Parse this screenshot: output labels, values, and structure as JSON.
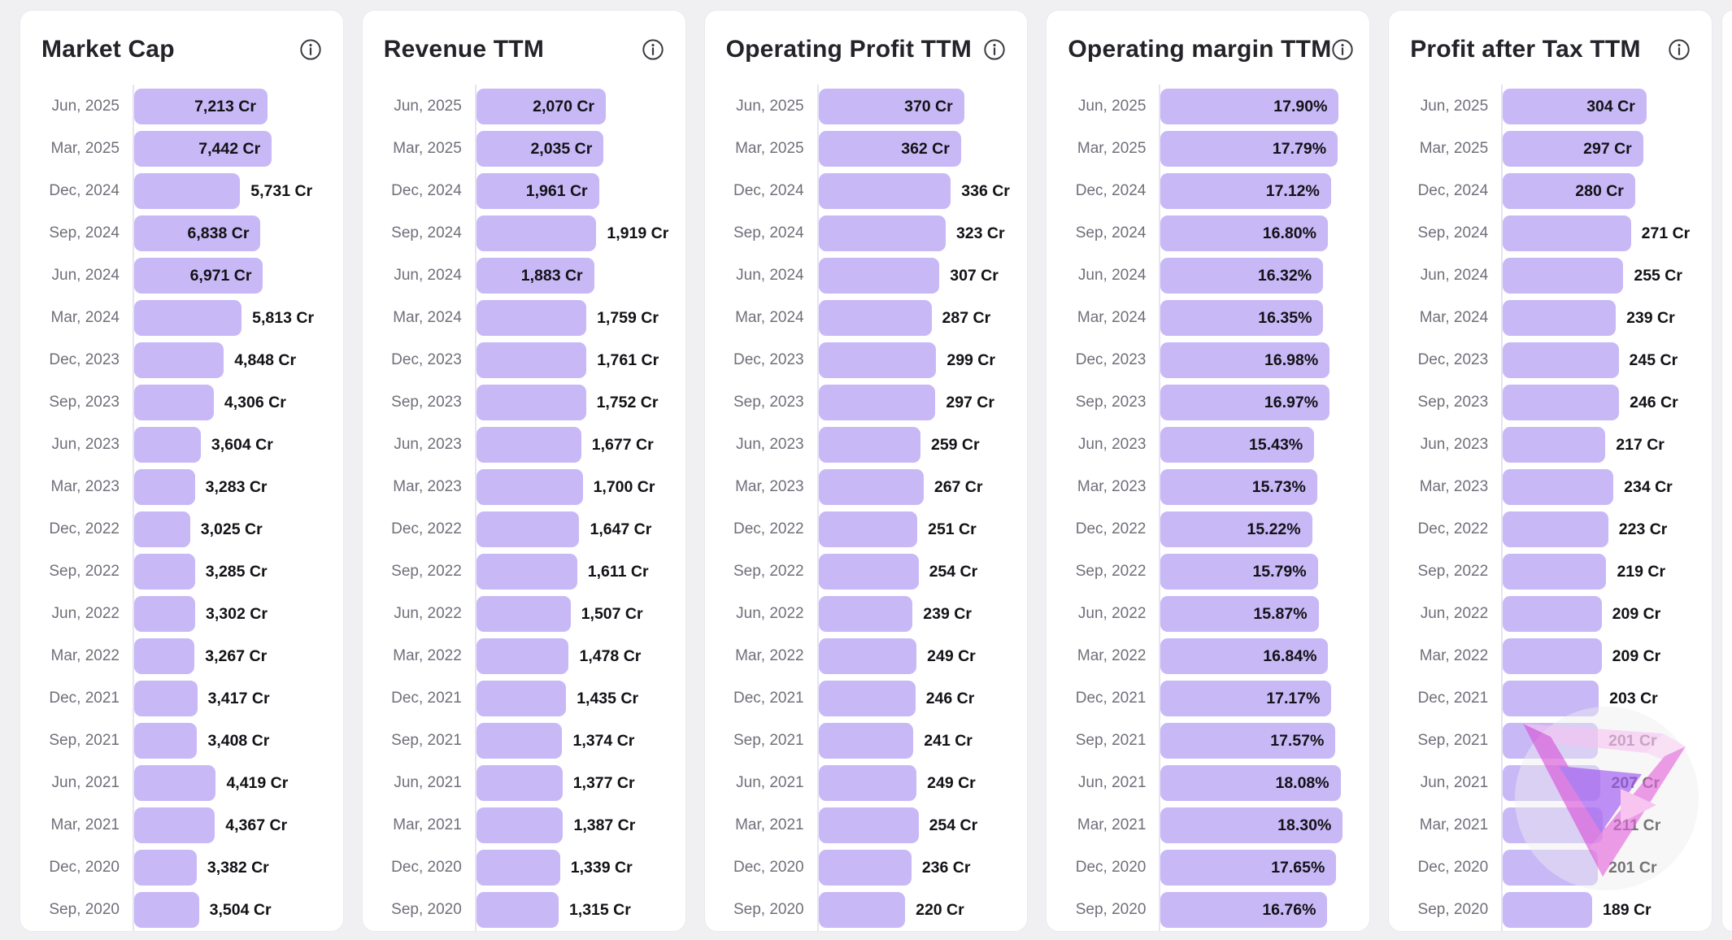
{
  "page": {
    "background": "#f0f0f2",
    "bar_color": "#c9b8f6",
    "axis_color": "#e6e4f1"
  },
  "categories": [
    "Jun, 2025",
    "Mar, 2025",
    "Dec, 2024",
    "Sep, 2024",
    "Jun, 2024",
    "Mar, 2024",
    "Dec, 2023",
    "Sep, 2023",
    "Jun, 2023",
    "Mar, 2023",
    "Dec, 2022",
    "Sep, 2022",
    "Jun, 2022",
    "Mar, 2022",
    "Dec, 2021",
    "Sep, 2021",
    "Jun, 2021",
    "Mar, 2021",
    "Dec, 2020",
    "Sep, 2020"
  ],
  "panels": [
    {
      "title": "Market Cap",
      "max": 7442,
      "max_bar_pct": 68,
      "labels": [
        "7,213 Cr",
        "7,442 Cr",
        "5,731 Cr",
        "6,838 Cr",
        "6,971 Cr",
        "5,813 Cr",
        "4,848 Cr",
        "4,306 Cr",
        "3,604 Cr",
        "3,283 Cr",
        "3,025 Cr",
        "3,285 Cr",
        "3,302 Cr",
        "3,267 Cr",
        "3,417 Cr",
        "3,408 Cr",
        "4,419 Cr",
        "4,367 Cr",
        "3,382 Cr",
        "3,504 Cr"
      ],
      "values": [
        7213,
        7442,
        5731,
        6838,
        6971,
        5813,
        4848,
        4306,
        3604,
        3283,
        3025,
        3285,
        3302,
        3267,
        3417,
        3408,
        4419,
        4367,
        3382,
        3504
      ],
      "inside": [
        true,
        true,
        false,
        true,
        true,
        false,
        false,
        false,
        false,
        false,
        false,
        false,
        false,
        false,
        false,
        false,
        false,
        false,
        false,
        false
      ]
    },
    {
      "title": "Revenue TTM",
      "max": 2070,
      "max_bar_pct": 64,
      "labels": [
        "2,070 Cr",
        "2,035 Cr",
        "1,961 Cr",
        "1,919 Cr",
        "1,883 Cr",
        "1,759 Cr",
        "1,761 Cr",
        "1,752 Cr",
        "1,677 Cr",
        "1,700 Cr",
        "1,647 Cr",
        "1,611 Cr",
        "1,507 Cr",
        "1,478 Cr",
        "1,435 Cr",
        "1,374 Cr",
        "1,377 Cr",
        "1,387 Cr",
        "1,339 Cr",
        "1,315 Cr"
      ],
      "values": [
        2070,
        2035,
        1961,
        1919,
        1883,
        1759,
        1761,
        1752,
        1677,
        1700,
        1647,
        1611,
        1507,
        1478,
        1435,
        1374,
        1377,
        1387,
        1339,
        1315
      ],
      "inside": [
        true,
        true,
        true,
        false,
        true,
        false,
        false,
        false,
        false,
        false,
        false,
        false,
        false,
        false,
        false,
        false,
        false,
        false,
        false,
        false
      ]
    },
    {
      "title": "Operating Profit TTM",
      "max": 370,
      "max_bar_pct": 72,
      "labels": [
        "370 Cr",
        "362 Cr",
        "336 Cr",
        "323 Cr",
        "307 Cr",
        "287 Cr",
        "299 Cr",
        "297 Cr",
        "259 Cr",
        "267 Cr",
        "251 Cr",
        "254 Cr",
        "239 Cr",
        "249 Cr",
        "246 Cr",
        "241 Cr",
        "249 Cr",
        "254 Cr",
        "236 Cr",
        "220 Cr"
      ],
      "values": [
        370,
        362,
        336,
        323,
        307,
        287,
        299,
        297,
        259,
        267,
        251,
        254,
        239,
        249,
        246,
        241,
        249,
        254,
        236,
        220
      ],
      "inside": [
        true,
        true,
        false,
        false,
        false,
        false,
        false,
        false,
        false,
        false,
        false,
        false,
        false,
        false,
        false,
        false,
        false,
        false,
        false,
        false
      ]
    },
    {
      "title": "Operating margin TTM",
      "max": 18.3,
      "max_bar_pct": 90,
      "labels": [
        "17.90%",
        "17.79%",
        "17.12%",
        "16.80%",
        "16.32%",
        "16.35%",
        "16.98%",
        "16.97%",
        "15.43%",
        "15.73%",
        "15.22%",
        "15.79%",
        "15.87%",
        "16.84%",
        "17.17%",
        "17.57%",
        "18.08%",
        "18.30%",
        "17.65%",
        "16.76%"
      ],
      "values": [
        17.9,
        17.79,
        17.12,
        16.8,
        16.32,
        16.35,
        16.98,
        16.97,
        15.43,
        15.73,
        15.22,
        15.79,
        15.87,
        16.84,
        17.17,
        17.57,
        18.08,
        18.3,
        17.65,
        16.76
      ],
      "inside": [
        true,
        true,
        true,
        true,
        true,
        true,
        true,
        true,
        true,
        true,
        true,
        true,
        true,
        true,
        true,
        true,
        true,
        true,
        true,
        true
      ]
    },
    {
      "title": "Profit after Tax TTM",
      "max": 304,
      "max_bar_pct": 71,
      "labels": [
        "304 Cr",
        "297 Cr",
        "280 Cr",
        "271 Cr",
        "255 Cr",
        "239 Cr",
        "245 Cr",
        "246 Cr",
        "217 Cr",
        "234 Cr",
        "223 Cr",
        "219 Cr",
        "209 Cr",
        "209 Cr",
        "203 Cr",
        "201 Cr",
        "207 Cr",
        "211 Cr",
        "201 Cr",
        "189 Cr"
      ],
      "values": [
        304,
        297,
        280,
        271,
        255,
        239,
        245,
        246,
        217,
        234,
        223,
        219,
        209,
        209,
        203,
        201,
        207,
        211,
        201,
        189
      ],
      "inside": [
        true,
        true,
        true,
        false,
        false,
        false,
        false,
        false,
        false,
        false,
        false,
        false,
        false,
        false,
        false,
        false,
        false,
        false,
        false,
        false
      ]
    }
  ],
  "chart_data": [
    {
      "type": "bar",
      "orientation": "horizontal",
      "title": "Market Cap",
      "unit": "Cr",
      "xlim": [
        0,
        7442
      ],
      "grid": false,
      "categories": [
        "Jun, 2025",
        "Mar, 2025",
        "Dec, 2024",
        "Sep, 2024",
        "Jun, 2024",
        "Mar, 2024",
        "Dec, 2023",
        "Sep, 2023",
        "Jun, 2023",
        "Mar, 2023",
        "Dec, 2022",
        "Sep, 2022",
        "Jun, 2022",
        "Mar, 2022",
        "Dec, 2021",
        "Sep, 2021",
        "Jun, 2021",
        "Mar, 2021",
        "Dec, 2020",
        "Sep, 2020"
      ],
      "values": [
        7213,
        7442,
        5731,
        6838,
        6971,
        5813,
        4848,
        4306,
        3604,
        3283,
        3025,
        3285,
        3302,
        3267,
        3417,
        3408,
        4419,
        4367,
        3382,
        3504
      ]
    },
    {
      "type": "bar",
      "orientation": "horizontal",
      "title": "Revenue TTM",
      "unit": "Cr",
      "xlim": [
        0,
        2070
      ],
      "grid": false,
      "categories": [
        "Jun, 2025",
        "Mar, 2025",
        "Dec, 2024",
        "Sep, 2024",
        "Jun, 2024",
        "Mar, 2024",
        "Dec, 2023",
        "Sep, 2023",
        "Jun, 2023",
        "Mar, 2023",
        "Dec, 2022",
        "Sep, 2022",
        "Jun, 2022",
        "Mar, 2022",
        "Dec, 2021",
        "Sep, 2021",
        "Jun, 2021",
        "Mar, 2021",
        "Dec, 2020",
        "Sep, 2020"
      ],
      "values": [
        2070,
        2035,
        1961,
        1919,
        1883,
        1759,
        1761,
        1752,
        1677,
        1700,
        1647,
        1611,
        1507,
        1478,
        1435,
        1374,
        1377,
        1387,
        1339,
        1315
      ]
    },
    {
      "type": "bar",
      "orientation": "horizontal",
      "title": "Operating Profit TTM",
      "unit": "Cr",
      "xlim": [
        0,
        370
      ],
      "grid": false,
      "categories": [
        "Jun, 2025",
        "Mar, 2025",
        "Dec, 2024",
        "Sep, 2024",
        "Jun, 2024",
        "Mar, 2024",
        "Dec, 2023",
        "Sep, 2023",
        "Jun, 2023",
        "Mar, 2023",
        "Dec, 2022",
        "Sep, 2022",
        "Jun, 2022",
        "Mar, 2022",
        "Dec, 2021",
        "Sep, 2021",
        "Jun, 2021",
        "Mar, 2021",
        "Dec, 2020",
        "Sep, 2020"
      ],
      "values": [
        370,
        362,
        336,
        323,
        307,
        287,
        299,
        297,
        259,
        267,
        251,
        254,
        239,
        249,
        246,
        241,
        249,
        254,
        236,
        220
      ]
    },
    {
      "type": "bar",
      "orientation": "horizontal",
      "title": "Operating margin TTM",
      "unit": "%",
      "xlim": [
        0,
        18.3
      ],
      "grid": false,
      "categories": [
        "Jun, 2025",
        "Mar, 2025",
        "Dec, 2024",
        "Sep, 2024",
        "Jun, 2024",
        "Mar, 2024",
        "Dec, 2023",
        "Sep, 2023",
        "Jun, 2023",
        "Mar, 2023",
        "Dec, 2022",
        "Sep, 2022",
        "Jun, 2022",
        "Mar, 2022",
        "Dec, 2021",
        "Sep, 2021",
        "Jun, 2021",
        "Mar, 2021",
        "Dec, 2020",
        "Sep, 2020"
      ],
      "values": [
        17.9,
        17.79,
        17.12,
        16.8,
        16.32,
        16.35,
        16.98,
        16.97,
        15.43,
        15.73,
        15.22,
        15.79,
        15.87,
        16.84,
        17.17,
        17.57,
        18.08,
        18.3,
        17.65,
        16.76
      ]
    },
    {
      "type": "bar",
      "orientation": "horizontal",
      "title": "Profit after Tax TTM",
      "unit": "Cr",
      "xlim": [
        0,
        304
      ],
      "grid": false,
      "categories": [
        "Jun, 2025",
        "Mar, 2025",
        "Dec, 2024",
        "Sep, 2024",
        "Jun, 2024",
        "Mar, 2024",
        "Dec, 2023",
        "Sep, 2023",
        "Jun, 2023",
        "Mar, 2023",
        "Dec, 2022",
        "Sep, 2022",
        "Jun, 2022",
        "Mar, 2022",
        "Dec, 2021",
        "Sep, 2021",
        "Jun, 2021",
        "Mar, 2021",
        "Dec, 2020",
        "Sep, 2020"
      ],
      "values": [
        304,
        297,
        280,
        271,
        255,
        239,
        245,
        246,
        217,
        234,
        223,
        219,
        209,
        209,
        203,
        201,
        207,
        211,
        201,
        189
      ]
    }
  ]
}
